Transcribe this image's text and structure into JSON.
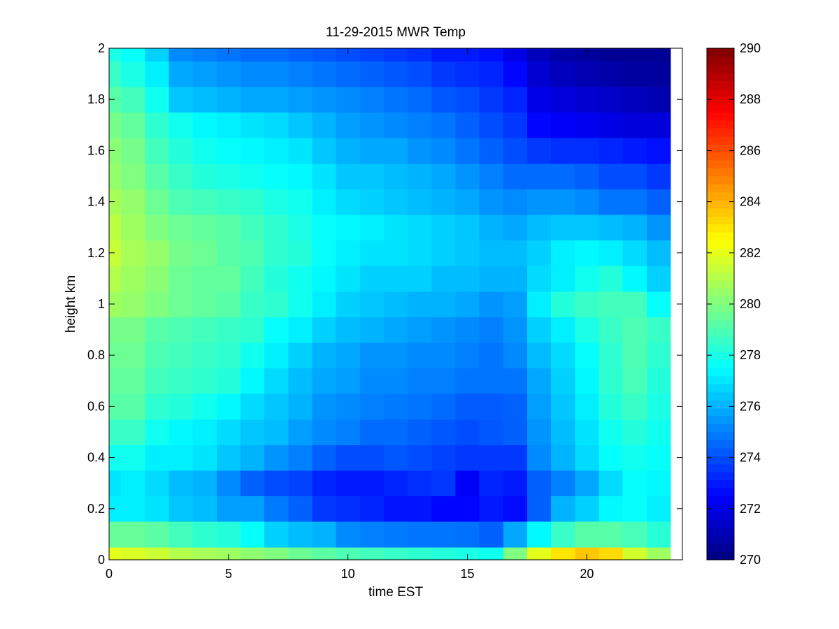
{
  "chart_data": {
    "type": "heatmap",
    "title": "11-29-2015 MWR Temp",
    "xlabel": "time EST",
    "ylabel": "height km",
    "xlim": [
      0,
      23.5
    ],
    "ylim": [
      0,
      2
    ],
    "x_ticks": [
      "0",
      "5",
      "10",
      "15",
      "20"
    ],
    "y_ticks": [
      "0",
      "0.2",
      "0.4",
      "0.6",
      "0.8",
      "1",
      "1.2",
      "1.4",
      "1.6",
      "1.8",
      "2"
    ],
    "colormap": "jet",
    "colorbar": {
      "range": [
        270,
        290
      ],
      "ticks": [
        "270",
        "272",
        "274",
        "276",
        "278",
        "280",
        "282",
        "284",
        "286",
        "288",
        "290"
      ]
    },
    "x_edges": [
      0,
      0.5,
      1.5,
      2.5,
      3.5,
      4.5,
      5.5,
      6.5,
      7.5,
      8.5,
      9.5,
      10.5,
      11.5,
      12.5,
      13.5,
      14.5,
      15.5,
      16.5,
      17.5,
      18.5,
      19.5,
      20.5,
      21.5,
      22.5,
      23.5
    ],
    "y_edges": [
      0,
      0.05,
      0.15,
      0.25,
      0.35,
      0.45,
      0.55,
      0.65,
      0.75,
      0.85,
      0.95,
      1.05,
      1.15,
      1.25,
      1.35,
      1.45,
      1.55,
      1.65,
      1.75,
      1.85,
      1.95,
      2.0
    ],
    "z_rows_bottom_to_top": [
      [
        282.0,
        281.8,
        281.5,
        281.0,
        280.8,
        280.6,
        280.3,
        280.0,
        279.6,
        279.3,
        279.0,
        278.8,
        278.6,
        278.4,
        278.2,
        278.0,
        277.8,
        280.0,
        282.0,
        283.0,
        283.6,
        283.2,
        281.6,
        280.6,
        279.8
      ],
      [
        279.5,
        279.5,
        279.3,
        278.8,
        278.4,
        278.2,
        277.6,
        276.6,
        276.2,
        276.0,
        275.2,
        275.0,
        274.9,
        274.8,
        274.8,
        274.7,
        274.4,
        275.8,
        277.4,
        278.6,
        279.2,
        279.2,
        278.9,
        278.3,
        277.6
      ],
      [
        277.2,
        277.2,
        277.0,
        276.4,
        276.2,
        275.6,
        275.6,
        274.9,
        274.4,
        273.6,
        273.4,
        273.2,
        272.9,
        272.9,
        272.6,
        272.6,
        273.0,
        272.7,
        274.4,
        276.0,
        276.6,
        277.4,
        277.6,
        277.2,
        276.4
      ],
      [
        277.0,
        277.2,
        276.8,
        276.2,
        276.0,
        275.2,
        274.4,
        274.0,
        273.8,
        273.2,
        273.0,
        273.0,
        273.2,
        273.4,
        273.6,
        272.4,
        273.2,
        273.0,
        274.4,
        275.0,
        275.8,
        276.8,
        277.6,
        277.4,
        276.4
      ],
      [
        277.8,
        277.8,
        277.2,
        277.2,
        277.0,
        276.4,
        276.0,
        275.4,
        275.0,
        274.4,
        274.0,
        274.0,
        274.2,
        274.0,
        273.8,
        273.6,
        273.6,
        273.6,
        275.2,
        276.0,
        276.8,
        277.6,
        277.8,
        277.6,
        276.8
      ],
      [
        278.6,
        278.6,
        277.8,
        277.4,
        277.2,
        276.8,
        276.4,
        276.2,
        275.6,
        275.2,
        275.0,
        274.6,
        274.6,
        274.4,
        274.2,
        274.0,
        274.2,
        274.4,
        275.4,
        276.2,
        277.0,
        277.8,
        278.2,
        277.8,
        277.2
      ],
      [
        279.2,
        279.2,
        278.4,
        278.2,
        277.8,
        277.4,
        276.8,
        276.4,
        276.0,
        275.4,
        275.2,
        275.0,
        274.9,
        274.8,
        274.6,
        274.3,
        274.3,
        274.4,
        275.6,
        276.4,
        277.2,
        278.2,
        278.6,
        278.0,
        277.4
      ],
      [
        279.4,
        279.4,
        278.8,
        278.6,
        278.4,
        278.2,
        277.4,
        276.8,
        276.2,
        275.8,
        275.6,
        275.2,
        275.2,
        275.0,
        275.0,
        274.8,
        274.8,
        274.8,
        275.8,
        276.6,
        277.4,
        278.4,
        278.9,
        278.2,
        277.6
      ],
      [
        279.6,
        279.6,
        279.0,
        278.8,
        278.6,
        278.4,
        277.8,
        277.2,
        276.6,
        276.0,
        275.8,
        275.4,
        275.4,
        275.2,
        275.2,
        275.0,
        274.8,
        275.2,
        276.2,
        276.8,
        277.6,
        278.4,
        279.0,
        278.4,
        277.8
      ],
      [
        279.8,
        279.8,
        279.2,
        279.0,
        278.8,
        278.6,
        278.4,
        277.6,
        277.2,
        276.6,
        276.2,
        276.0,
        275.8,
        275.6,
        275.4,
        275.2,
        275.0,
        275.4,
        276.6,
        277.2,
        278.0,
        278.6,
        279.0,
        278.6,
        278.0
      ],
      [
        280.6,
        280.4,
        280.0,
        279.6,
        279.4,
        279.2,
        278.6,
        278.4,
        277.8,
        277.2,
        276.6,
        276.4,
        276.2,
        276.0,
        276.0,
        275.8,
        275.4,
        275.6,
        277.2,
        278.2,
        278.6,
        278.8,
        278.8,
        277.6,
        276.8
      ],
      [
        281.0,
        280.6,
        280.2,
        279.6,
        279.4,
        279.4,
        278.8,
        278.2,
        277.8,
        277.4,
        277.0,
        276.6,
        276.6,
        276.6,
        276.2,
        276.2,
        276.0,
        276.0,
        276.8,
        277.2,
        277.8,
        278.2,
        277.4,
        276.6,
        276.2
      ],
      [
        281.4,
        280.8,
        280.4,
        279.8,
        279.6,
        279.2,
        279.0,
        278.4,
        278.2,
        277.6,
        277.2,
        277.0,
        277.0,
        276.8,
        276.6,
        276.4,
        276.2,
        276.2,
        276.6,
        277.2,
        277.4,
        277.2,
        276.8,
        276.2,
        275.8
      ],
      [
        281.2,
        280.6,
        280.0,
        279.6,
        279.4,
        279.2,
        278.8,
        278.4,
        278.0,
        277.6,
        277.4,
        277.2,
        277.0,
        276.8,
        276.6,
        276.4,
        276.0,
        275.8,
        276.2,
        276.4,
        276.4,
        276.2,
        276.0,
        275.4,
        275.0
      ],
      [
        280.8,
        280.4,
        279.6,
        279.0,
        278.8,
        278.6,
        278.4,
        278.0,
        277.8,
        277.2,
        276.8,
        276.6,
        276.4,
        276.2,
        276.0,
        275.8,
        275.4,
        275.2,
        275.4,
        275.4,
        275.2,
        274.8,
        274.8,
        274.4,
        274.0
      ],
      [
        280.4,
        280.0,
        279.2,
        278.6,
        278.2,
        278.0,
        277.8,
        277.6,
        277.4,
        277.0,
        276.4,
        276.4,
        276.2,
        276.0,
        275.8,
        275.4,
        275.0,
        274.6,
        274.6,
        274.6,
        274.4,
        274.0,
        274.0,
        273.6,
        273.2
      ],
      [
        280.2,
        279.8,
        278.8,
        278.2,
        277.8,
        277.6,
        277.4,
        277.2,
        277.0,
        276.4,
        276.0,
        275.8,
        275.8,
        275.4,
        275.2,
        274.8,
        274.4,
        274.0,
        273.6,
        273.4,
        273.4,
        273.2,
        273.0,
        272.8,
        272.4
      ],
      [
        279.8,
        279.4,
        278.4,
        277.8,
        277.4,
        277.2,
        277.0,
        276.8,
        276.4,
        276.0,
        275.6,
        275.4,
        275.2,
        275.0,
        274.8,
        274.4,
        274.0,
        273.6,
        272.6,
        272.4,
        272.2,
        272.0,
        271.8,
        271.8,
        271.6
      ],
      [
        279.2,
        278.8,
        277.8,
        276.4,
        276.2,
        276.0,
        275.8,
        275.8,
        275.6,
        275.4,
        275.2,
        275.0,
        274.8,
        274.6,
        274.2,
        274.0,
        273.6,
        273.2,
        272.0,
        271.8,
        271.6,
        271.4,
        271.2,
        271.0,
        271.0
      ],
      [
        278.6,
        278.0,
        277.2,
        275.8,
        275.6,
        275.4,
        275.2,
        275.2,
        275.0,
        274.8,
        274.6,
        274.4,
        274.2,
        274.0,
        273.6,
        273.4,
        273.2,
        272.6,
        271.6,
        271.2,
        271.0,
        270.8,
        270.6,
        270.6,
        270.6
      ],
      [
        278.0,
        277.6,
        276.6,
        275.2,
        275.0,
        274.8,
        274.6,
        274.6,
        274.4,
        274.2,
        274.0,
        273.8,
        273.6,
        273.4,
        273.0,
        273.0,
        272.8,
        272.0,
        271.2,
        270.8,
        270.6,
        270.4,
        270.4,
        270.4,
        270.4
      ]
    ]
  }
}
